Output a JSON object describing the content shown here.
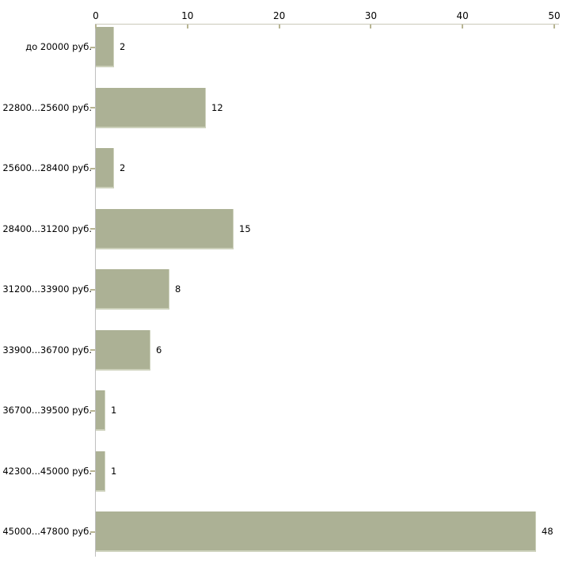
{
  "chart_data": {
    "type": "bar",
    "orientation": "horizontal",
    "title": "",
    "xlabel": "",
    "ylabel": "",
    "categories": [
      "до 20000 руб.",
      "22800...25600 руб.",
      "25600...28400 руб.",
      "28400...31200 руб.",
      "31200...33900 руб.",
      "33900...36700 руб.",
      "36700...39500 руб.",
      "42300...45000 руб.",
      "45000...47800 руб."
    ],
    "values": [
      2,
      12,
      2,
      15,
      8,
      6,
      1,
      1,
      48
    ],
    "value_labels": [
      "2",
      "12",
      "2",
      "15",
      "8",
      "6",
      "1",
      "1",
      "48"
    ],
    "xlim": [
      0,
      50
    ],
    "x_ticks": [
      0,
      10,
      20,
      30,
      40,
      50
    ],
    "x_tick_labels": [
      "0",
      "10",
      "20",
      "30",
      "40",
      "50"
    ],
    "axis_position": "top",
    "grid": false,
    "legend": null,
    "colors": {
      "bar_fill": "#acb195",
      "bar_edge_highlight": "#cdd1bb",
      "x_axis_line": "#cbc9ba",
      "x_tick_mark": "#b8b593",
      "y_axis_line": "#bfbfbf",
      "category_tick_mark": "#b8b593",
      "text": "#000000",
      "background": "#ffffff"
    }
  }
}
